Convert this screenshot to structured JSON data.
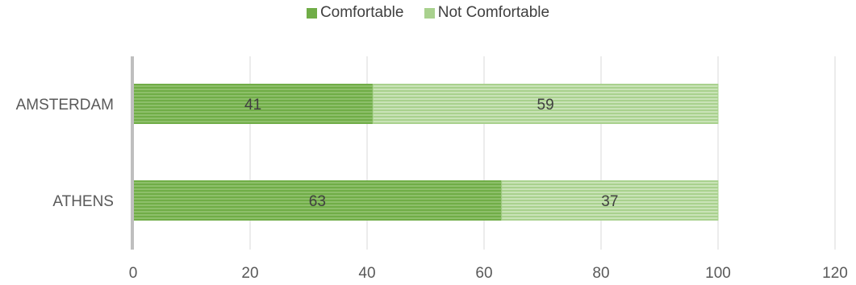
{
  "chart_data": {
    "type": "bar",
    "orientation": "horizontal",
    "stacked": true,
    "categories": [
      "AMSTERDAM",
      "ATHENS"
    ],
    "series": [
      {
        "name": "Comfortable",
        "values": [
          41,
          63
        ],
        "color": "#70AD47"
      },
      {
        "name": "Not Comfortable",
        "values": [
          59,
          37
        ],
        "color": "#A9D18E"
      }
    ],
    "xlim": [
      0,
      120
    ],
    "xticks": [
      0,
      20,
      40,
      60,
      80,
      100,
      120
    ],
    "grid": true,
    "legend_position": "top",
    "data_labels": true,
    "title": "",
    "xlabel": "",
    "ylabel": ""
  }
}
